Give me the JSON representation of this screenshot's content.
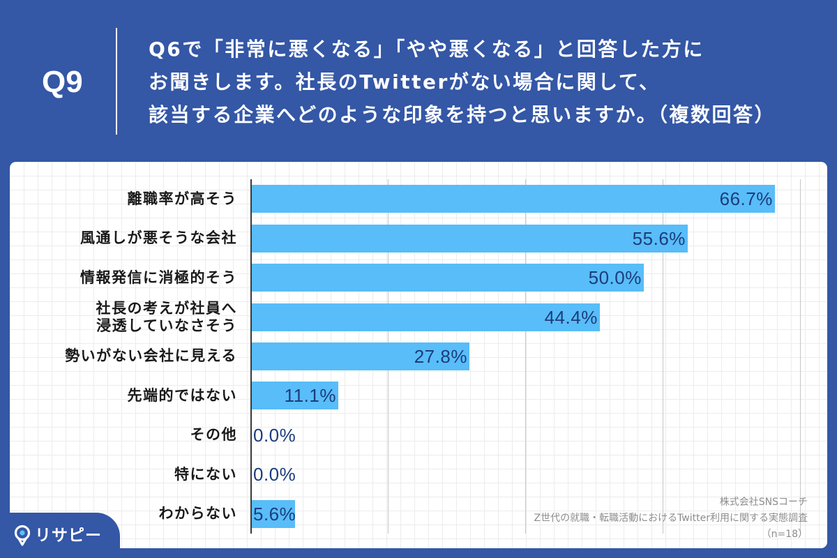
{
  "header": {
    "question_number": "Q9",
    "question_lines": [
      "Q6で「非常に悪くなる」「やや悪くなる」と回答した方に",
      "お聞きします。社長のTwitterがない場合に関して、",
      "該当する企業へどのような印象を持つと思いますか。（複数回答）"
    ]
  },
  "chart_data": {
    "type": "bar",
    "orientation": "horizontal",
    "categories": [
      "離職率が高そう",
      "風通しが悪そうな会社",
      "情報発信に消極的そう",
      "社長の考えが社員へ\n浸透していなさそう",
      "勢いがない会社に見える",
      "先端的ではない",
      "その他",
      "特にない",
      "わからない"
    ],
    "values": [
      66.7,
      55.6,
      50.0,
      44.4,
      27.8,
      11.1,
      0.0,
      0.0,
      5.6
    ],
    "value_labels": [
      "66.7%",
      "55.6%",
      "50.0%",
      "44.4%",
      "27.8%",
      "11.1%",
      "0.0%",
      "0.0%",
      "5.6%"
    ],
    "xlim": [
      0,
      70
    ],
    "grid": true
  },
  "source": {
    "lines": [
      "株式会社SNSコーチ",
      "Z世代の就職・転職活動におけるTwitter利用に関する実態調査",
      "（n=18）"
    ]
  },
  "logo": {
    "text": "リサピー",
    "icon": "map-pin-icon"
  },
  "colors": {
    "background": "#3457a6",
    "card": "#ffffff",
    "bar": "#58bdf8",
    "value_label": "#1d3c7c",
    "gridline": "#c6c6c6",
    "axis": "#3a3a3a",
    "source_text": "#8c8c8c",
    "logo_dot": "#5bc2f5"
  }
}
